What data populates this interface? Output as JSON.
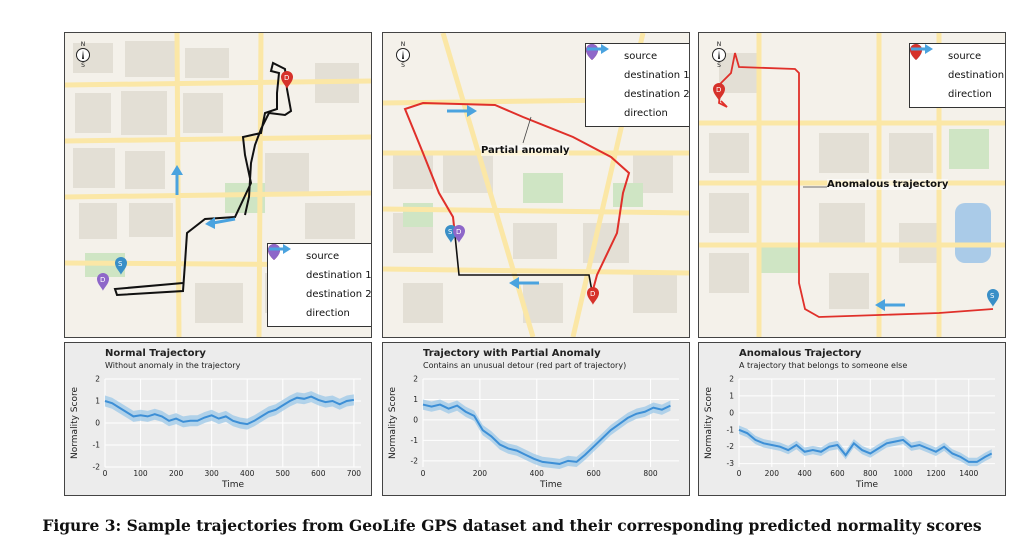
{
  "maps": [
    {
      "id": "map1",
      "compass": {
        "n": "N",
        "s": "S"
      },
      "legend": [
        {
          "key": "source",
          "label": "source",
          "marker": "S",
          "color": "#3a8fc7"
        },
        {
          "key": "destination-1",
          "label": "destination 1",
          "marker": "D",
          "color": "#d6322b"
        },
        {
          "key": "destination-2",
          "label": "destination 2",
          "marker": "D",
          "color": "#8e67c9"
        },
        {
          "key": "direction",
          "label": "direction",
          "marker": "arrow",
          "color": "#4aa3df"
        }
      ]
    },
    {
      "id": "map2",
      "compass": {
        "n": "N",
        "s": "S"
      },
      "annotation": "Partial anomaly",
      "legend": [
        {
          "key": "source",
          "label": "source",
          "marker": "S",
          "color": "#3a8fc7"
        },
        {
          "key": "destination-1",
          "label": "destination 1",
          "marker": "D",
          "color": "#d6322b"
        },
        {
          "key": "destination-2",
          "label": "destination 2",
          "marker": "D",
          "color": "#8e67c9"
        },
        {
          "key": "direction",
          "label": "direction",
          "marker": "arrow",
          "color": "#4aa3df"
        }
      ]
    },
    {
      "id": "map3",
      "compass": {
        "n": "N",
        "s": "S"
      },
      "annotation": "Anomalous trajectory",
      "legend": [
        {
          "key": "source",
          "label": "source",
          "marker": "S",
          "color": "#3a8fc7"
        },
        {
          "key": "destination",
          "label": "destination",
          "marker": "D",
          "color": "#d6322b"
        },
        {
          "key": "direction",
          "label": "direction",
          "marker": "arrow",
          "color": "#4aa3df"
        }
      ]
    }
  ],
  "colors": {
    "normal_path": "#111111",
    "anomaly_path": "#e0302a",
    "direction_arrow": "#4aa3df",
    "score_line": "#3d8fd6",
    "score_band": "#9cc8e8",
    "map_bg": "#f4f1ea",
    "map_block": "#e6e2d8",
    "map_road": "#fbe7a6",
    "map_green": "#cfe5c4",
    "map_water": "#aacbe8"
  },
  "chart_data": [
    {
      "type": "line",
      "title": "Normal Trajectory",
      "subtitle": "Without anomaly in the trajectory",
      "xlabel": "Time",
      "ylabel": "Normality Score",
      "xlim": [
        0,
        720
      ],
      "ylim": [
        -2,
        2
      ],
      "xticks": [
        0,
        100,
        200,
        300,
        400,
        500,
        600,
        700
      ],
      "yticks": [
        -2,
        -1,
        0,
        1,
        2
      ],
      "grid": true,
      "x": [
        0,
        20,
        40,
        60,
        80,
        100,
        120,
        140,
        160,
        180,
        200,
        220,
        240,
        260,
        280,
        300,
        320,
        340,
        360,
        380,
        400,
        420,
        440,
        460,
        480,
        500,
        520,
        540,
        560,
        580,
        600,
        620,
        640,
        660,
        680,
        700
      ],
      "y": [
        1.0,
        0.9,
        0.7,
        0.5,
        0.3,
        0.35,
        0.3,
        0.4,
        0.3,
        0.1,
        0.2,
        0.05,
        0.1,
        0.1,
        0.25,
        0.35,
        0.2,
        0.3,
        0.1,
        0.0,
        -0.05,
        0.1,
        0.3,
        0.5,
        0.6,
        0.8,
        1.0,
        1.15,
        1.1,
        1.2,
        1.05,
        0.95,
        1.0,
        0.85,
        1.0,
        1.05
      ]
    },
    {
      "type": "line",
      "title": "Trajectory with Partial Anomaly",
      "subtitle": "Contains an unusual detour (red part of trajectory)",
      "xlabel": "Time",
      "ylabel": "Normality Score",
      "xlim": [
        0,
        900
      ],
      "ylim": [
        -2.3,
        2
      ],
      "xticks": [
        0,
        200,
        400,
        600,
        800
      ],
      "yticks": [
        -2,
        -1,
        0,
        1,
        2
      ],
      "grid": true,
      "x": [
        0,
        30,
        60,
        90,
        120,
        150,
        180,
        210,
        240,
        270,
        300,
        330,
        360,
        390,
        420,
        450,
        480,
        510,
        540,
        570,
        600,
        630,
        660,
        690,
        720,
        750,
        780,
        810,
        840,
        870
      ],
      "y": [
        0.75,
        0.65,
        0.75,
        0.55,
        0.7,
        0.4,
        0.2,
        -0.5,
        -0.8,
        -1.2,
        -1.4,
        -1.5,
        -1.7,
        -1.9,
        -2.05,
        -2.1,
        -2.15,
        -2.0,
        -2.05,
        -1.7,
        -1.3,
        -0.9,
        -0.5,
        -0.2,
        0.1,
        0.3,
        0.4,
        0.6,
        0.5,
        0.7
      ]
    },
    {
      "type": "line",
      "title": "Anomalous Trajectory",
      "subtitle": "A trajectory that belongs to someone else",
      "xlabel": "Time",
      "ylabel": "Normality Score",
      "xlim": [
        0,
        1560
      ],
      "ylim": [
        -3.2,
        2
      ],
      "xticks": [
        0,
        200,
        400,
        600,
        800,
        1000,
        1200,
        1400
      ],
      "yticks": [
        -3,
        -2,
        -1,
        0,
        1,
        2
      ],
      "grid": true,
      "x": [
        0,
        50,
        100,
        150,
        200,
        250,
        300,
        350,
        400,
        450,
        500,
        550,
        600,
        650,
        700,
        750,
        800,
        850,
        900,
        950,
        1000,
        1050,
        1100,
        1150,
        1200,
        1250,
        1300,
        1350,
        1400,
        1450,
        1500,
        1540
      ],
      "y": [
        -1.0,
        -1.2,
        -1.6,
        -1.8,
        -1.9,
        -2.0,
        -2.2,
        -1.9,
        -2.3,
        -2.2,
        -2.3,
        -2.0,
        -1.9,
        -2.5,
        -1.8,
        -2.2,
        -2.4,
        -2.1,
        -1.8,
        -1.7,
        -1.6,
        -2.0,
        -1.9,
        -2.1,
        -2.3,
        -2.0,
        -2.4,
        -2.6,
        -2.9,
        -2.9,
        -2.6,
        -2.4
      ]
    }
  ],
  "caption": "Figure 3: Sample trajectories from GeoLife GPS dataset and their corresponding predicted normality scores"
}
